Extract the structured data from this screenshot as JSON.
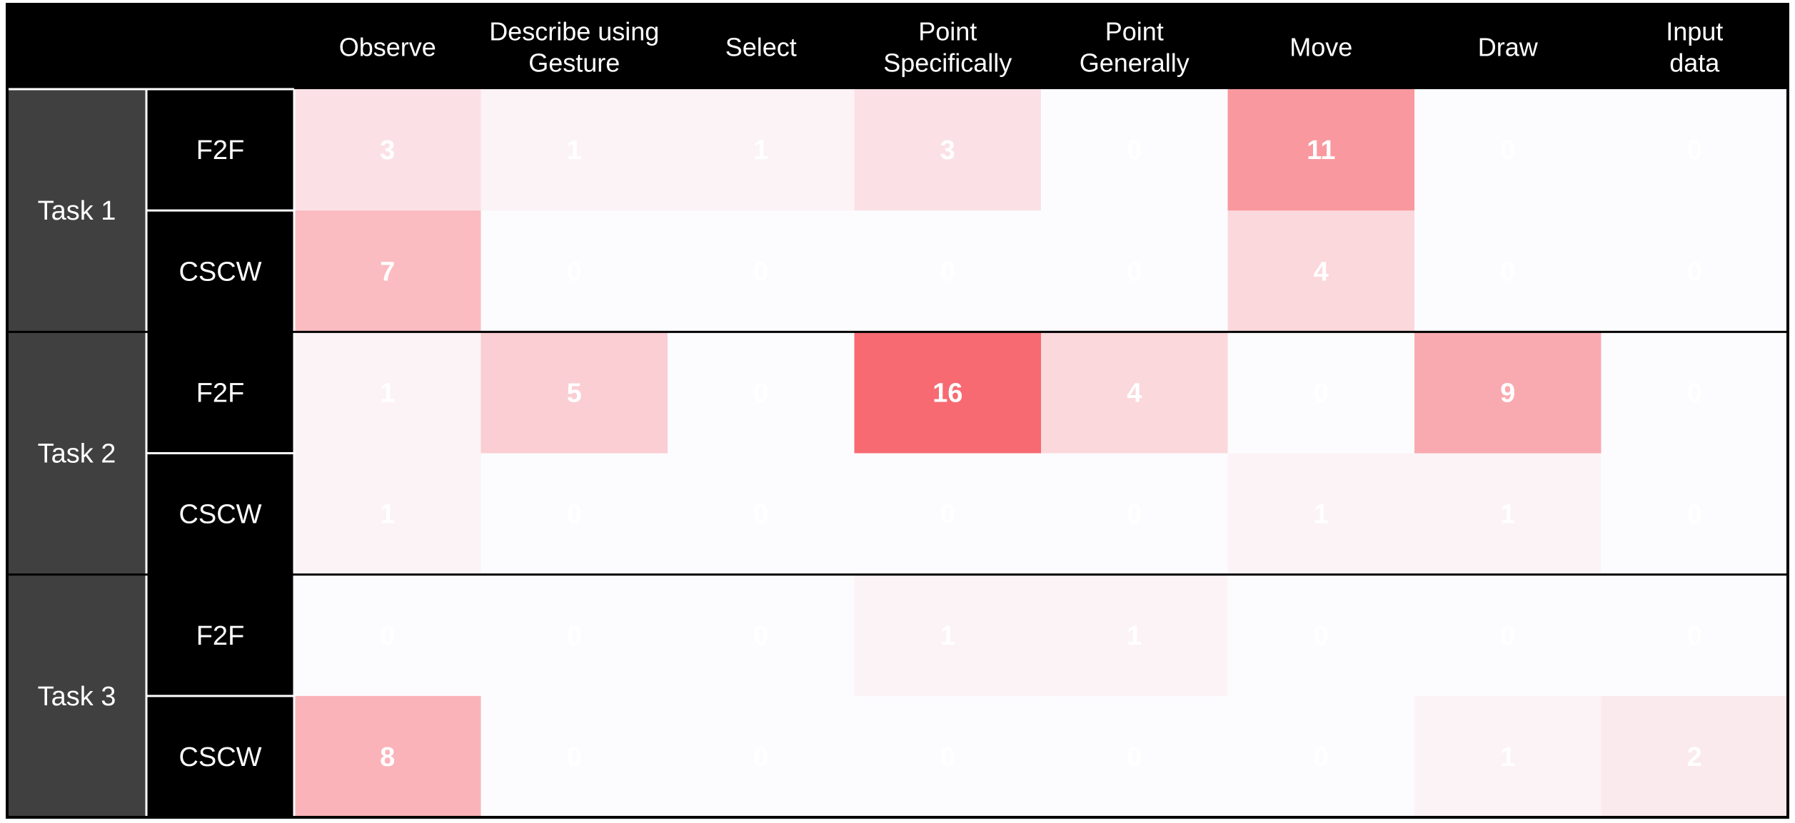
{
  "chart_data": {
    "type": "heatmap",
    "columns": [
      "Observe",
      "Describe using Gesture",
      "Select",
      "Point Specifically",
      "Point Generally",
      "Move",
      "Draw",
      "Input data"
    ],
    "tasks": [
      {
        "label": "Task 1",
        "conditions": [
          {
            "label": "F2F",
            "values": [
              3,
              1,
              1,
              3,
              0,
              11,
              0,
              0
            ]
          },
          {
            "label": "CSCW",
            "values": [
              7,
              0,
              0,
              0,
              0,
              4,
              0,
              0
            ]
          }
        ]
      },
      {
        "label": "Task 2",
        "conditions": [
          {
            "label": "F2F",
            "values": [
              1,
              5,
              0,
              16,
              4,
              0,
              9,
              0
            ]
          },
          {
            "label": "CSCW",
            "values": [
              1,
              0,
              0,
              0,
              0,
              1,
              1,
              0
            ]
          }
        ]
      },
      {
        "label": "Task 3",
        "conditions": [
          {
            "label": "F2F",
            "values": [
              0,
              0,
              0,
              1,
              1,
              0,
              0,
              0
            ]
          },
          {
            "label": "CSCW",
            "values": [
              8,
              0,
              0,
              0,
              0,
              0,
              1,
              2
            ]
          }
        ]
      }
    ],
    "value_range": [
      0,
      16
    ],
    "colors": {
      "zero": "#fcfcff",
      "max": "#f76a72",
      "header_bg": "#000000",
      "task_bg": "#404040",
      "label_text": "#ffffff"
    }
  }
}
